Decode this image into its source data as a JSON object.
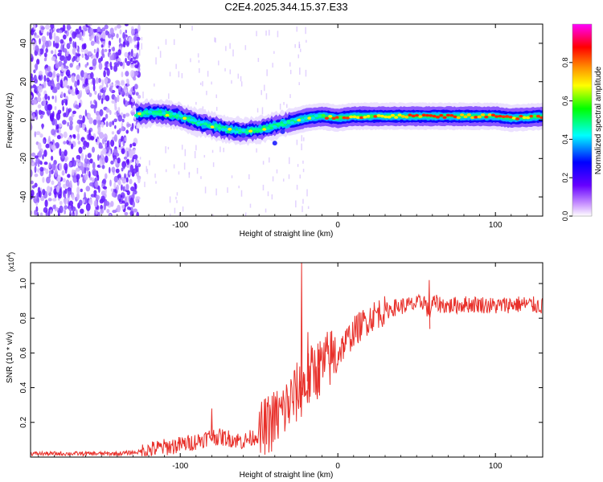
{
  "title": "C2E4.2025.344.15.37.E33",
  "chart_data": [
    {
      "type": "heatmap",
      "xlabel": "Height of straight line (km)",
      "ylabel": "Frequency (Hz)",
      "xlim": [
        -195,
        130
      ],
      "ylim": [
        -50,
        50
      ],
      "xticks": [
        -100,
        0,
        100
      ],
      "yticks": [
        -40,
        -20,
        0,
        20,
        40
      ],
      "colorbar": {
        "label": "Normalized spectral amplitude",
        "range": [
          0,
          1
        ],
        "ticks": [
          0.0,
          0.2,
          0.4,
          0.6,
          0.8
        ],
        "colors": [
          "#ffffff",
          "#cc99ff",
          "#6600ff",
          "#0000ff",
          "#00ffff",
          "#00ff00",
          "#ffff00",
          "#ff8800",
          "#ff0000",
          "#ff00ff"
        ]
      },
      "ridge": {
        "x": [
          -128,
          -115,
          -100,
          -90,
          -80,
          -70,
          -60,
          -50,
          -40,
          -30,
          -20,
          -10,
          0,
          10,
          20,
          40,
          60,
          80,
          100,
          110,
          130
        ],
        "y": [
          3,
          4,
          2,
          -1,
          -3,
          -5,
          -6,
          -5,
          -3,
          -1,
          1,
          2,
          1,
          2,
          2,
          2,
          2,
          2,
          2,
          1,
          2
        ]
      },
      "noise_region_x": [
        -195,
        -128
      ]
    },
    {
      "type": "line",
      "xlabel": "Height of straight line (km)",
      "ylabel": "SNR (10 * v/v)",
      "scale_label": "(x10",
      "scale_exp": "4",
      "scale_close": ")",
      "xlim": [
        -195,
        130
      ],
      "ylim": [
        0,
        1.12
      ],
      "xticks": [
        -100,
        0,
        100
      ],
      "yticks": [
        0.2,
        0.4,
        0.6,
        0.8,
        1.0
      ],
      "series": [
        {
          "name": "SNR",
          "color": "#e8302a",
          "x": [
            -195,
            -160,
            -140,
            -125,
            -115,
            -100,
            -90,
            -80,
            -70,
            -60,
            -50,
            -45,
            -40,
            -35,
            -30,
            -25,
            -20,
            -15,
            -10,
            -5,
            0,
            5,
            10,
            15,
            20,
            25,
            30,
            35,
            40,
            50,
            55,
            58,
            60,
            65,
            70,
            80,
            90,
            100,
            110,
            120,
            130
          ],
          "y": [
            0.02,
            0.02,
            0.02,
            0.03,
            0.05,
            0.07,
            0.09,
            0.12,
            0.11,
            0.09,
            0.13,
            0.18,
            0.22,
            0.26,
            0.32,
            0.38,
            0.42,
            0.5,
            0.52,
            0.57,
            0.6,
            0.66,
            0.72,
            0.76,
            0.8,
            0.83,
            0.84,
            0.86,
            0.87,
            0.88,
            0.9,
            0.82,
            0.89,
            0.88,
            0.87,
            0.88,
            0.88,
            0.87,
            0.88,
            0.88,
            0.87
          ]
        }
      ],
      "spikes": [
        {
          "x": -80,
          "y": 0.28
        },
        {
          "x": -23,
          "y": 1.12
        },
        {
          "x": -19,
          "y": 0.72
        },
        {
          "x": -12,
          "y": 0.62
        },
        {
          "x": 58,
          "y": 1.02
        }
      ]
    }
  ]
}
